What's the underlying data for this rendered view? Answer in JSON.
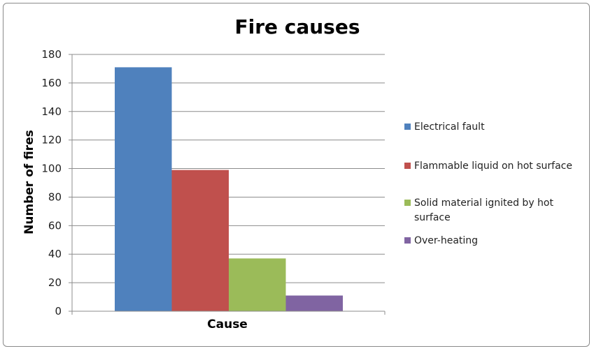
{
  "chart_data": {
    "type": "bar",
    "title": "Fire causes",
    "xlabel": "Cause",
    "ylabel": "Number of fires",
    "categories": [
      "Cause"
    ],
    "series": [
      {
        "name": "Electrical fault",
        "values": [
          171
        ],
        "color": "#4f81bd"
      },
      {
        "name": "Flammable liquid on hot surface",
        "values": [
          99
        ],
        "color": "#c0504d"
      },
      {
        "name": "Solid material ignited by hot surface",
        "values": [
          37
        ],
        "color": "#9bbb59"
      },
      {
        "name": "Over-heating",
        "values": [
          11
        ],
        "color": "#8064a2"
      }
    ],
    "ylim": [
      0,
      180
    ],
    "yticks": [
      0,
      20,
      40,
      60,
      80,
      100,
      120,
      140,
      160,
      180
    ],
    "ytick_labels": [
      "0",
      "20",
      "40",
      "60",
      "80",
      "100",
      "120",
      "140",
      "160",
      "180"
    ],
    "grid": true,
    "legend": "right"
  }
}
